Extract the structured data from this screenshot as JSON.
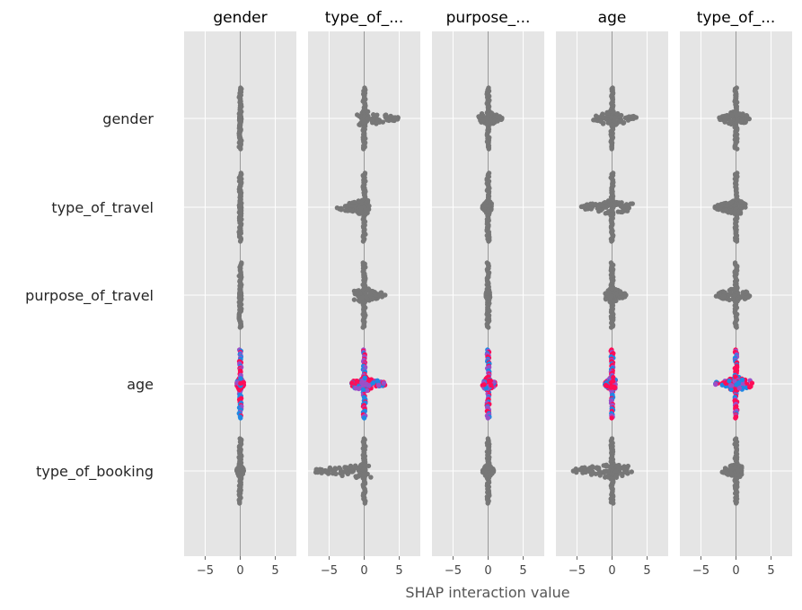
{
  "chart_data": {
    "type": "scatter",
    "subtype": "shap-interaction-beeswarm-matrix",
    "xlabel": "SHAP interaction value",
    "xlim": [
      -8,
      8
    ],
    "x_ticks": [
      -5,
      0,
      5
    ],
    "x_tick_labels": [
      "−5",
      "0",
      "5"
    ],
    "grid": true,
    "background": "#e5e5e5",
    "colors": {
      "neutral": "#777777",
      "low": "#1e88e5",
      "high": "#ff0d57",
      "mid": "#9b4fc8"
    },
    "panels": [
      "gender",
      "type_of_...",
      "purpose_...",
      "age",
      "type_of_..."
    ],
    "rows": [
      "gender",
      "type_of_travel",
      "purpose_of_travel",
      "age",
      "type_of_booking"
    ],
    "distributions": [
      {
        "row": "gender",
        "panel": 1,
        "range": [
          -0.1,
          0.1
        ],
        "colored": false
      },
      {
        "row": "gender",
        "panel": 2,
        "range": [
          -1,
          5
        ],
        "colored": false
      },
      {
        "row": "gender",
        "panel": 3,
        "range": [
          -1.5,
          2
        ],
        "colored": false
      },
      {
        "row": "gender",
        "panel": 4,
        "range": [
          -3,
          3.5
        ],
        "colored": false
      },
      {
        "row": "gender",
        "panel": 5,
        "range": [
          -2.5,
          2
        ],
        "colored": false
      },
      {
        "row": "type_of_travel",
        "panel": 1,
        "range": [
          -0.1,
          0.1
        ],
        "colored": false
      },
      {
        "row": "type_of_travel",
        "panel": 2,
        "range": [
          -4,
          0.8
        ],
        "colored": false
      },
      {
        "row": "type_of_travel",
        "panel": 3,
        "range": [
          -0.8,
          0.5
        ],
        "colored": false
      },
      {
        "row": "type_of_travel",
        "panel": 4,
        "range": [
          -4.5,
          3
        ],
        "colored": false
      },
      {
        "row": "type_of_travel",
        "panel": 5,
        "range": [
          -3,
          1.5
        ],
        "colored": false
      },
      {
        "row": "purpose_of_travel",
        "panel": 1,
        "range": [
          -0.1,
          0.1
        ],
        "colored": false
      },
      {
        "row": "purpose_of_travel",
        "panel": 2,
        "range": [
          -1.5,
          3
        ],
        "colored": false
      },
      {
        "row": "purpose_of_travel",
        "panel": 3,
        "range": [
          -0.3,
          0.3
        ],
        "colored": false
      },
      {
        "row": "purpose_of_travel",
        "panel": 4,
        "range": [
          -1,
          2
        ],
        "colored": false
      },
      {
        "row": "purpose_of_travel",
        "panel": 5,
        "range": [
          -3,
          2
        ],
        "colored": false
      },
      {
        "row": "age",
        "panel": 1,
        "range": [
          -0.5,
          0.5
        ],
        "colored": true
      },
      {
        "row": "age",
        "panel": 2,
        "range": [
          -1.8,
          3
        ],
        "colored": true
      },
      {
        "row": "age",
        "panel": 3,
        "range": [
          -0.8,
          1
        ],
        "colored": true
      },
      {
        "row": "age",
        "panel": 4,
        "range": [
          -1,
          0.5
        ],
        "colored": true
      },
      {
        "row": "age",
        "panel": 5,
        "range": [
          -3,
          3
        ],
        "colored": true
      },
      {
        "row": "type_of_booking",
        "panel": 1,
        "range": [
          -0.5,
          0.5
        ],
        "colored": false
      },
      {
        "row": "type_of_booking",
        "panel": 2,
        "range": [
          -7,
          1
        ],
        "colored": false
      },
      {
        "row": "type_of_booking",
        "panel": 3,
        "range": [
          -0.8,
          0.8
        ],
        "colored": false
      },
      {
        "row": "type_of_booking",
        "panel": 4,
        "range": [
          -6,
          3
        ],
        "colored": false
      },
      {
        "row": "type_of_booking",
        "panel": 5,
        "range": [
          -2,
          1
        ],
        "colored": false
      }
    ]
  }
}
